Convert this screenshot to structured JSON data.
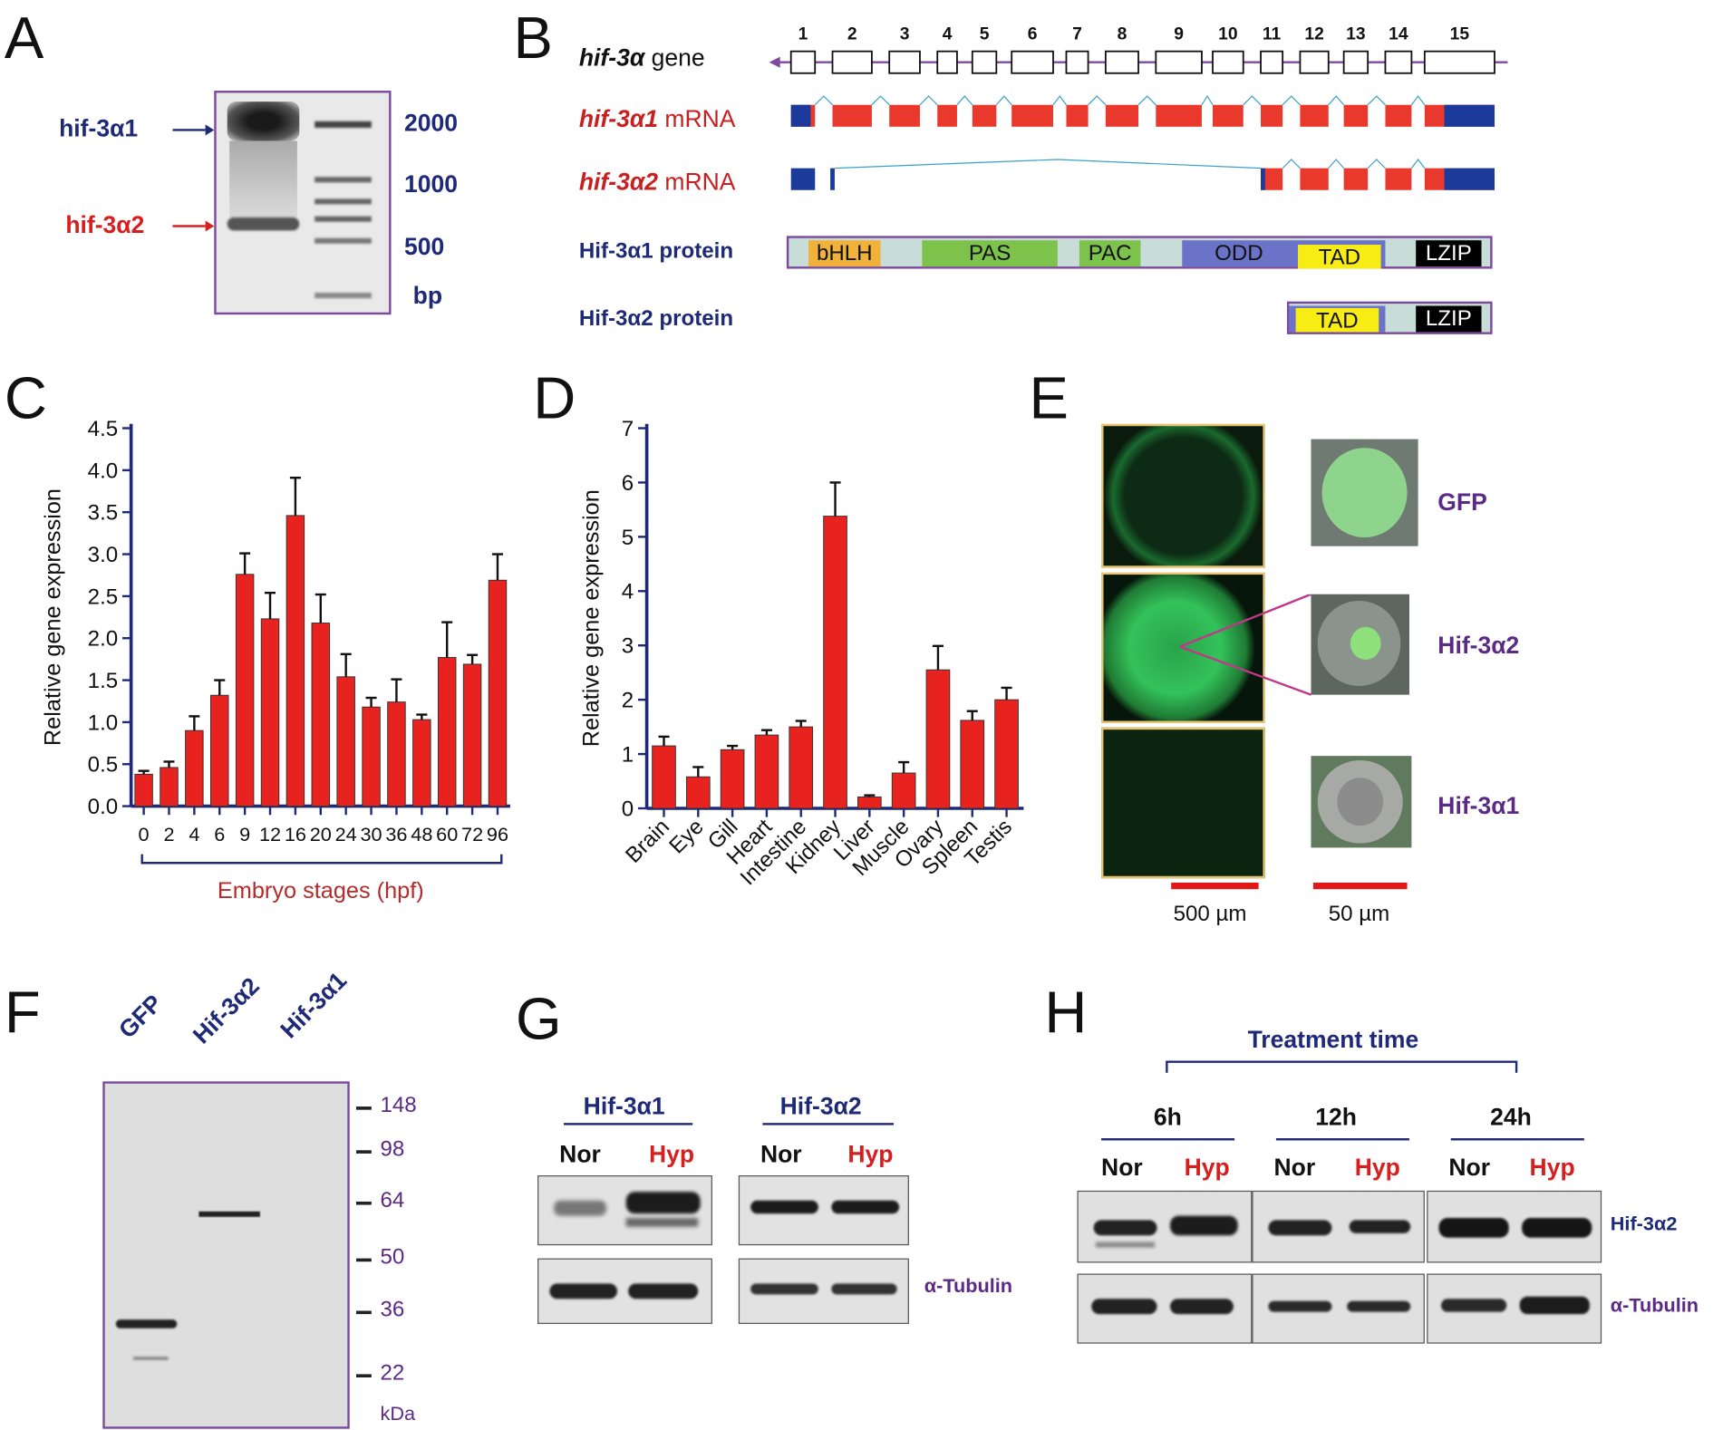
{
  "panel_labels": {
    "a": "A",
    "b": "B",
    "c": "C",
    "d": "D",
    "e": "E",
    "f": "F",
    "g": "G",
    "h": "H"
  },
  "panel_a": {
    "band_labels": [
      "hif-3α1",
      "hif-3α2"
    ],
    "ladder": [
      "2000",
      "1000",
      "500",
      "bp"
    ]
  },
  "panel_b": {
    "gene_label_italic": "hif-3α",
    "gene_label_rest": " gene",
    "exons": [
      "1",
      "2",
      "3",
      "4",
      "5",
      "6",
      "7",
      "8",
      "9",
      "10",
      "11",
      "12",
      "13",
      "14",
      "15"
    ],
    "mrna1_italic": "hif-3α1",
    "mrna2_italic": "hif-3α2",
    "mrna_word": " mRNA",
    "protein1": "Hif-3α1 protein",
    "protein2": "Hif-3α2 protein",
    "domains": {
      "bhlh": "bHLH",
      "pas": "PAS",
      "pac": "PAC",
      "odd": "ODD",
      "tad": "TAD",
      "lzip": "LZIP"
    },
    "colors": {
      "exon_red": "#e8392c",
      "utr_blue": "#1b3a9a",
      "bhlh": "#f0b23a",
      "pas": "#7dc24a",
      "pac": "#7dc24a",
      "odd": "#6a73c8",
      "tad": "#f7ec14",
      "lzip": "#000000",
      "protein_bg": "#c8dcd8"
    }
  },
  "chart_data": [
    {
      "type": "bar",
      "panel": "C",
      "categories": [
        "0",
        "2",
        "4",
        "6",
        "9",
        "12",
        "16",
        "20",
        "24",
        "30",
        "36",
        "48",
        "60",
        "72",
        "96"
      ],
      "values": [
        0.38,
        0.46,
        0.9,
        1.32,
        2.76,
        2.23,
        3.46,
        2.18,
        1.54,
        1.18,
        1.24,
        1.03,
        1.77,
        1.69,
        2.69
      ],
      "errors": [
        0.04,
        0.07,
        0.17,
        0.18,
        0.25,
        0.31,
        0.45,
        0.34,
        0.27,
        0.11,
        0.27,
        0.06,
        0.42,
        0.11,
        0.31
      ],
      "ylabel": "Relative gene expression",
      "xlabel": "Embryo stages (hpf)",
      "ylim": [
        0,
        4.5
      ],
      "yticks": [
        "0.0",
        "0.5",
        "1.0",
        "1.5",
        "2.0",
        "2.5",
        "3.0",
        "3.5",
        "4.0",
        "4.5"
      ],
      "bar_color": "#e8231f"
    },
    {
      "type": "bar",
      "panel": "D",
      "categories": [
        "Brain",
        "Eye",
        "Gill",
        "Heart",
        "Intestine",
        "Kidney",
        "Liver",
        "Muscle",
        "Ovary",
        "Spleen",
        "Testis"
      ],
      "values": [
        1.15,
        0.58,
        1.08,
        1.35,
        1.5,
        5.38,
        0.21,
        0.65,
        2.55,
        1.62,
        2.0
      ],
      "errors": [
        0.17,
        0.18,
        0.07,
        0.09,
        0.11,
        0.62,
        0.03,
        0.2,
        0.44,
        0.17,
        0.22
      ],
      "ylabel": "Relative gene expression",
      "ylim": [
        0,
        7
      ],
      "yticks": [
        "0",
        "1",
        "2",
        "3",
        "4",
        "5",
        "6",
        "7"
      ],
      "bar_color": "#e8231f"
    }
  ],
  "panel_e": {
    "rows": [
      "GFP",
      "Hif-3α2",
      "Hif-3α1"
    ],
    "scale_left": "500 µm",
    "scale_right": "50 µm"
  },
  "panel_f": {
    "lanes": [
      "GFP",
      "Hif-3α2",
      "Hif-3α1"
    ],
    "markers": [
      "148",
      "98",
      "64",
      "50",
      "36",
      "22"
    ],
    "unit": "kDa"
  },
  "panel_g": {
    "groups": [
      "Hif-3α1",
      "Hif-3α2"
    ],
    "nor": "Nor",
    "hyp": "Hyp",
    "tubulin": "α-Tubulin"
  },
  "panel_h": {
    "title": "Treatment time",
    "times": [
      "6h",
      "12h",
      "24h"
    ],
    "nor": "Nor",
    "hyp": "Hyp",
    "row1": "Hif-3α2",
    "row2": "α-Tubulin"
  }
}
